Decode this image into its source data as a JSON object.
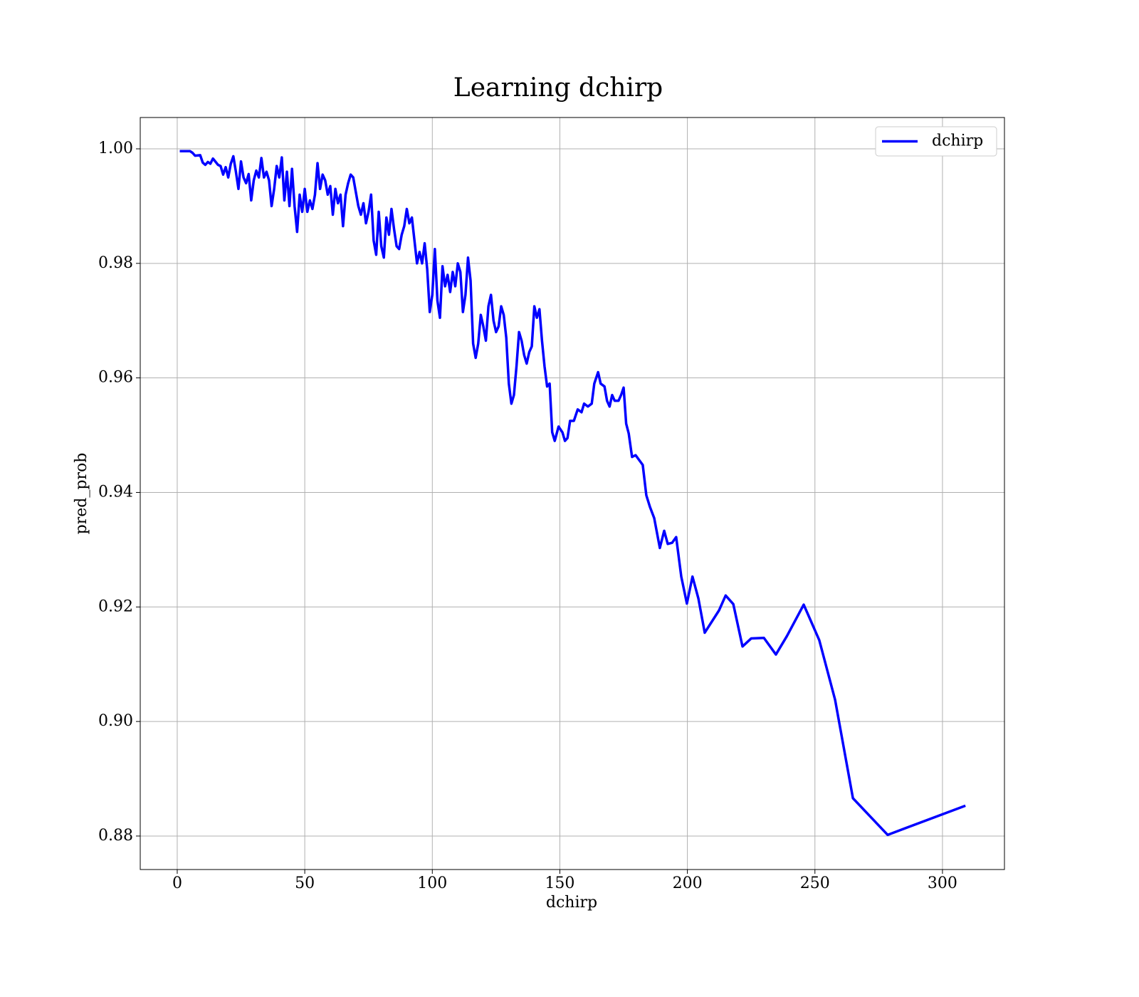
{
  "chart_data": {
    "type": "line",
    "title": "Learning dchirp",
    "xlabel": "dchirp",
    "ylabel": "pred_prob",
    "x": [
      1,
      5,
      6,
      7,
      9,
      10,
      11,
      12,
      13,
      14,
      16,
      17,
      18,
      19,
      20,
      21,
      22,
      23,
      24,
      25,
      26,
      27,
      28,
      29,
      30,
      31,
      32,
      33,
      34,
      35,
      36,
      37,
      38,
      39,
      40,
      41,
      42,
      43,
      44,
      45,
      46,
      47,
      48,
      49,
      50,
      51,
      52,
      53,
      54,
      55,
      56,
      57,
      58,
      59,
      60,
      61,
      62,
      63,
      64,
      65,
      66,
      67,
      68,
      69,
      70,
      71,
      72,
      73,
      74,
      75,
      76,
      77,
      78,
      79,
      80,
      81,
      82,
      83,
      84,
      85,
      86,
      87,
      88,
      89,
      90,
      91,
      92,
      93,
      94,
      95,
      96,
      97,
      98,
      99,
      100,
      101,
      102,
      103,
      104,
      105,
      106,
      107,
      108,
      109,
      110,
      111,
      112,
      113,
      114,
      115,
      116,
      117,
      118,
      119,
      120,
      121,
      122,
      123,
      124,
      125,
      126,
      127,
      128,
      129,
      130,
      131,
      132,
      133,
      134,
      135,
      136,
      137,
      138,
      139,
      140,
      141,
      142,
      143,
      144,
      145,
      146,
      147,
      148,
      149.5,
      151,
      152,
      153,
      154,
      155.5,
      157,
      158.5,
      159.5,
      161,
      162.5,
      163.5,
      165,
      166,
      167.5,
      168.5,
      169.5,
      170.5,
      171.5,
      173,
      174,
      175,
      176,
      177,
      178.3,
      179.7,
      182.5,
      183.9,
      185.3,
      187,
      189.2,
      190.9,
      192.3,
      194,
      195.6,
      197.6,
      199.8,
      202,
      204.3,
      206.8,
      212.4,
      215,
      218,
      221.6,
      225,
      230,
      234.7,
      239,
      245.6,
      251.7,
      257.9,
      264.9,
      278.5,
      309
    ],
    "series": [
      {
        "name": "dchirp",
        "color": "#0000ff",
        "values": [
          0.9996,
          0.9996,
          0.9993,
          0.9988,
          0.9989,
          0.9976,
          0.9972,
          0.9977,
          0.9974,
          0.9983,
          0.9972,
          0.997,
          0.9955,
          0.9968,
          0.995,
          0.9974,
          0.9987,
          0.996,
          0.993,
          0.9978,
          0.995,
          0.994,
          0.9956,
          0.991,
          0.9945,
          0.9962,
          0.995,
          0.9984,
          0.995,
          0.996,
          0.9945,
          0.99,
          0.993,
          0.997,
          0.995,
          0.9985,
          0.991,
          0.996,
          0.99,
          0.9965,
          0.99,
          0.9855,
          0.992,
          0.989,
          0.993,
          0.989,
          0.991,
          0.9895,
          0.992,
          0.9975,
          0.993,
          0.9955,
          0.9945,
          0.992,
          0.9935,
          0.9885,
          0.993,
          0.9905,
          0.992,
          0.9865,
          0.992,
          0.994,
          0.9955,
          0.995,
          0.9925,
          0.99,
          0.9885,
          0.9905,
          0.987,
          0.989,
          0.992,
          0.984,
          0.9815,
          0.989,
          0.983,
          0.981,
          0.988,
          0.985,
          0.9895,
          0.986,
          0.983,
          0.9825,
          0.985,
          0.9865,
          0.9895,
          0.987,
          0.988,
          0.984,
          0.98,
          0.982,
          0.98,
          0.9835,
          0.979,
          0.9715,
          0.9745,
          0.9825,
          0.9735,
          0.9705,
          0.9795,
          0.976,
          0.978,
          0.975,
          0.9785,
          0.976,
          0.98,
          0.9785,
          0.9715,
          0.9745,
          0.981,
          0.977,
          0.966,
          0.9635,
          0.966,
          0.971,
          0.969,
          0.9665,
          0.9725,
          0.9745,
          0.97,
          0.968,
          0.969,
          0.9725,
          0.971,
          0.967,
          0.959,
          0.9555,
          0.957,
          0.962,
          0.968,
          0.9665,
          0.964,
          0.9625,
          0.9645,
          0.9655,
          0.9725,
          0.9705,
          0.972,
          0.9665,
          0.962,
          0.9585,
          0.959,
          0.9505,
          0.949,
          0.9515,
          0.9505,
          0.949,
          0.9495,
          0.9525,
          0.9525,
          0.9545,
          0.954,
          0.9555,
          0.955,
          0.9555,
          0.959,
          0.961,
          0.959,
          0.9585,
          0.956,
          0.955,
          0.957,
          0.956,
          0.956,
          0.957,
          0.9583,
          0.952,
          0.9503,
          0.9462,
          0.9465,
          0.9448,
          0.9395,
          0.9375,
          0.9355,
          0.9303,
          0.9333,
          0.931,
          0.9312,
          0.9322,
          0.9253,
          0.9206,
          0.9253,
          0.9215,
          0.9155,
          0.9194,
          0.922,
          0.9205,
          0.9131,
          0.9145,
          0.9146,
          0.9117,
          0.9149,
          0.9204,
          0.9142,
          0.9038,
          0.8866,
          0.8802,
          0.8853
        ]
      }
    ],
    "xlim": [
      -14.5,
      324.3
    ],
    "ylim": [
      0.87415,
      1.00547
    ],
    "xticks": [
      0,
      50,
      100,
      150,
      200,
      250,
      300
    ],
    "yticks": [
      {
        "value": 0.88,
        "label": "0.88"
      },
      {
        "value": 0.9,
        "label": "0.90"
      },
      {
        "value": 0.92,
        "label": "0.92"
      },
      {
        "value": 0.94,
        "label": "0.94"
      },
      {
        "value": 0.96,
        "label": "0.96"
      },
      {
        "value": 0.98,
        "label": "0.98"
      },
      {
        "value": 1.0,
        "label": "1.00"
      }
    ],
    "grid": true,
    "legend": "upper right"
  }
}
